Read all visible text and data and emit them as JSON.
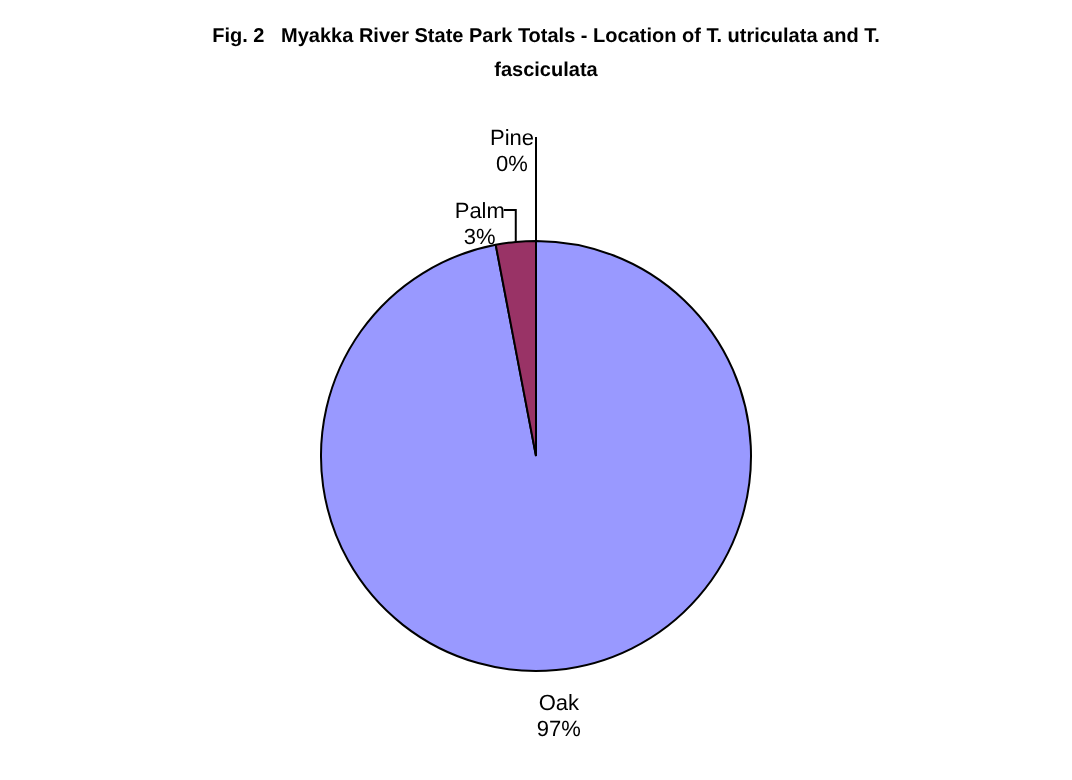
{
  "chart_data": {
    "type": "pie",
    "title": "Fig. 2   Myakka River State Park Totals - Location of T. utriculata and T. fasciculata",
    "categories": [
      "Oak",
      "Palm",
      "Pine"
    ],
    "values": [
      97,
      3,
      0
    ],
    "colors": [
      "#9999ff",
      "#993366",
      "#ffffcc"
    ],
    "value_labels": [
      "97%",
      "3%",
      "0%"
    ],
    "legend": false
  }
}
